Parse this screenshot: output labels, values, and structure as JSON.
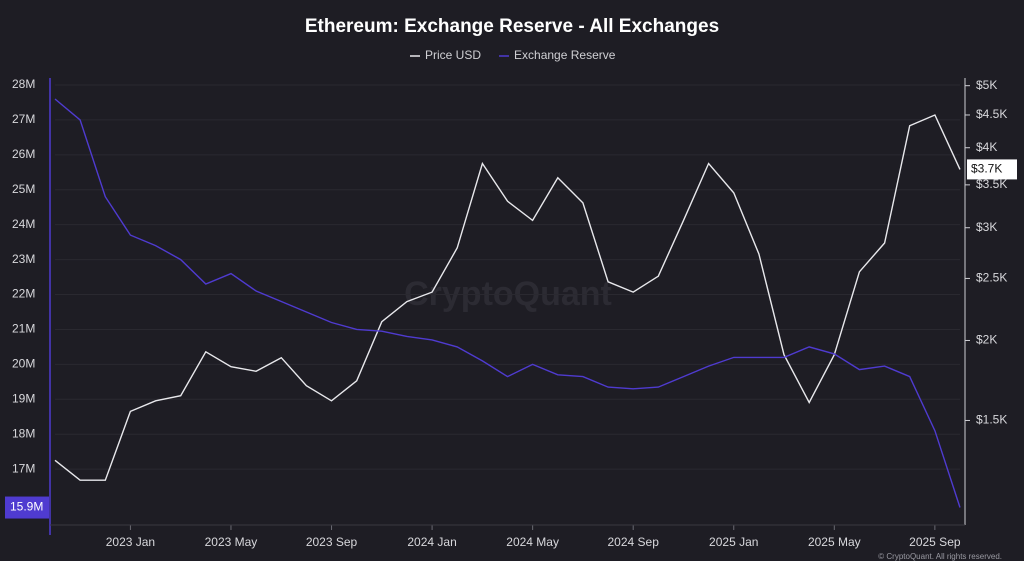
{
  "chart_data": {
    "type": "line",
    "title": "Ethereum: Exchange Reserve - All Exchanges",
    "watermark": "CryptoQuant",
    "copyright": "© CryptoQuant. All rights reserved.",
    "x": [
      "2022-10",
      "2022-11",
      "2022-12",
      "2023-01",
      "2023-02",
      "2023-03",
      "2023-04",
      "2023-05",
      "2023-06",
      "2023-07",
      "2023-08",
      "2023-09",
      "2023-10",
      "2023-11",
      "2023-12",
      "2024-01",
      "2024-02",
      "2024-03",
      "2024-04",
      "2024-05",
      "2024-06",
      "2024-07",
      "2024-08",
      "2024-09",
      "2024-10",
      "2024-11",
      "2024-12",
      "2025-01",
      "2025-02",
      "2025-03",
      "2025-04",
      "2025-05",
      "2025-06",
      "2025-07",
      "2025-08",
      "2025-09",
      "2025-10"
    ],
    "xlim": [
      "2022-10",
      "2025-10"
    ],
    "xticks": [
      {
        "value": "2023-01",
        "label": "2023 Jan"
      },
      {
        "value": "2023-05",
        "label": "2023 May"
      },
      {
        "value": "2023-09",
        "label": "2023 Sep"
      },
      {
        "value": "2024-01",
        "label": "2024 Jan"
      },
      {
        "value": "2024-05",
        "label": "2024 May"
      },
      {
        "value": "2024-09",
        "label": "2024 Sep"
      },
      {
        "value": "2025-01",
        "label": "2025 Jan"
      },
      {
        "value": "2025-05",
        "label": "2025 May"
      },
      {
        "value": "2025-09",
        "label": "2025 Sep"
      }
    ],
    "ylim": [
      15400000,
      28200000
    ],
    "yticks": [
      {
        "value": 17000000,
        "label": "17M"
      },
      {
        "value": 18000000,
        "label": "18M"
      },
      {
        "value": 19000000,
        "label": "19M"
      },
      {
        "value": 20000000,
        "label": "20M"
      },
      {
        "value": 21000000,
        "label": "21M"
      },
      {
        "value": 22000000,
        "label": "22M"
      },
      {
        "value": 23000000,
        "label": "23M"
      },
      {
        "value": 24000000,
        "label": "24M"
      },
      {
        "value": 25000000,
        "label": "25M"
      },
      {
        "value": 26000000,
        "label": "26M"
      },
      {
        "value": 27000000,
        "label": "27M"
      },
      {
        "value": 28000000,
        "label": "28M"
      }
    ],
    "y2lim": [
      1030,
      5140
    ],
    "y2scale": "log",
    "y2ticks": [
      {
        "value": 1500,
        "label": "$1.5K"
      },
      {
        "value": 2000,
        "label": "$2K"
      },
      {
        "value": 2500,
        "label": "$2.5K"
      },
      {
        "value": 3000,
        "label": "$3K"
      },
      {
        "value": 3500,
        "label": "$3.5K"
      },
      {
        "value": 4000,
        "label": "$4K"
      },
      {
        "value": 4500,
        "label": "$4.5K"
      },
      {
        "value": 5000,
        "label": "$5K"
      }
    ],
    "grid": true,
    "series": [
      {
        "name": "Price USD",
        "color": "#e8e8ec",
        "axis": "y2",
        "values": [
          1300,
          1210,
          1210,
          1550,
          1610,
          1640,
          1920,
          1820,
          1790,
          1880,
          1700,
          1610,
          1730,
          2140,
          2300,
          2380,
          2790,
          3780,
          3300,
          3080,
          3590,
          3280,
          2470,
          2380,
          2520,
          3080,
          3780,
          3400,
          2730,
          1900,
          1600,
          1900,
          2560,
          2840,
          4330,
          4500,
          3700
        ],
        "value_labels": [
          null,
          null,
          null,
          null,
          null,
          null,
          null,
          null,
          null,
          null,
          null,
          null,
          null,
          null,
          null,
          null,
          null,
          null,
          null,
          null,
          null,
          null,
          null,
          null,
          null,
          null,
          null,
          null,
          null,
          null,
          null,
          null,
          null,
          null,
          null,
          null,
          "$3.7K"
        ]
      },
      {
        "name": "Exchange Reserve",
        "color": "#4f3bd0",
        "axis": "y",
        "values": [
          27600000,
          27000000,
          24800000,
          23700000,
          23400000,
          23000000,
          22300000,
          22600000,
          22100000,
          21800000,
          21500000,
          21200000,
          21000000,
          20950000,
          20800000,
          20700000,
          20500000,
          20100000,
          19650000,
          20000000,
          19700000,
          19650000,
          19350000,
          19300000,
          19350000,
          19650000,
          19950000,
          20200000,
          20200000,
          20200000,
          20500000,
          20300000,
          19850000,
          19950000,
          19650000,
          18100000,
          15900000
        ],
        "value_labels": [
          null,
          null,
          null,
          null,
          null,
          null,
          null,
          null,
          null,
          null,
          null,
          null,
          null,
          null,
          null,
          null,
          null,
          null,
          null,
          null,
          null,
          null,
          null,
          null,
          null,
          null,
          null,
          null,
          null,
          null,
          null,
          null,
          null,
          null,
          null,
          null,
          "15.9M"
        ]
      }
    ]
  }
}
